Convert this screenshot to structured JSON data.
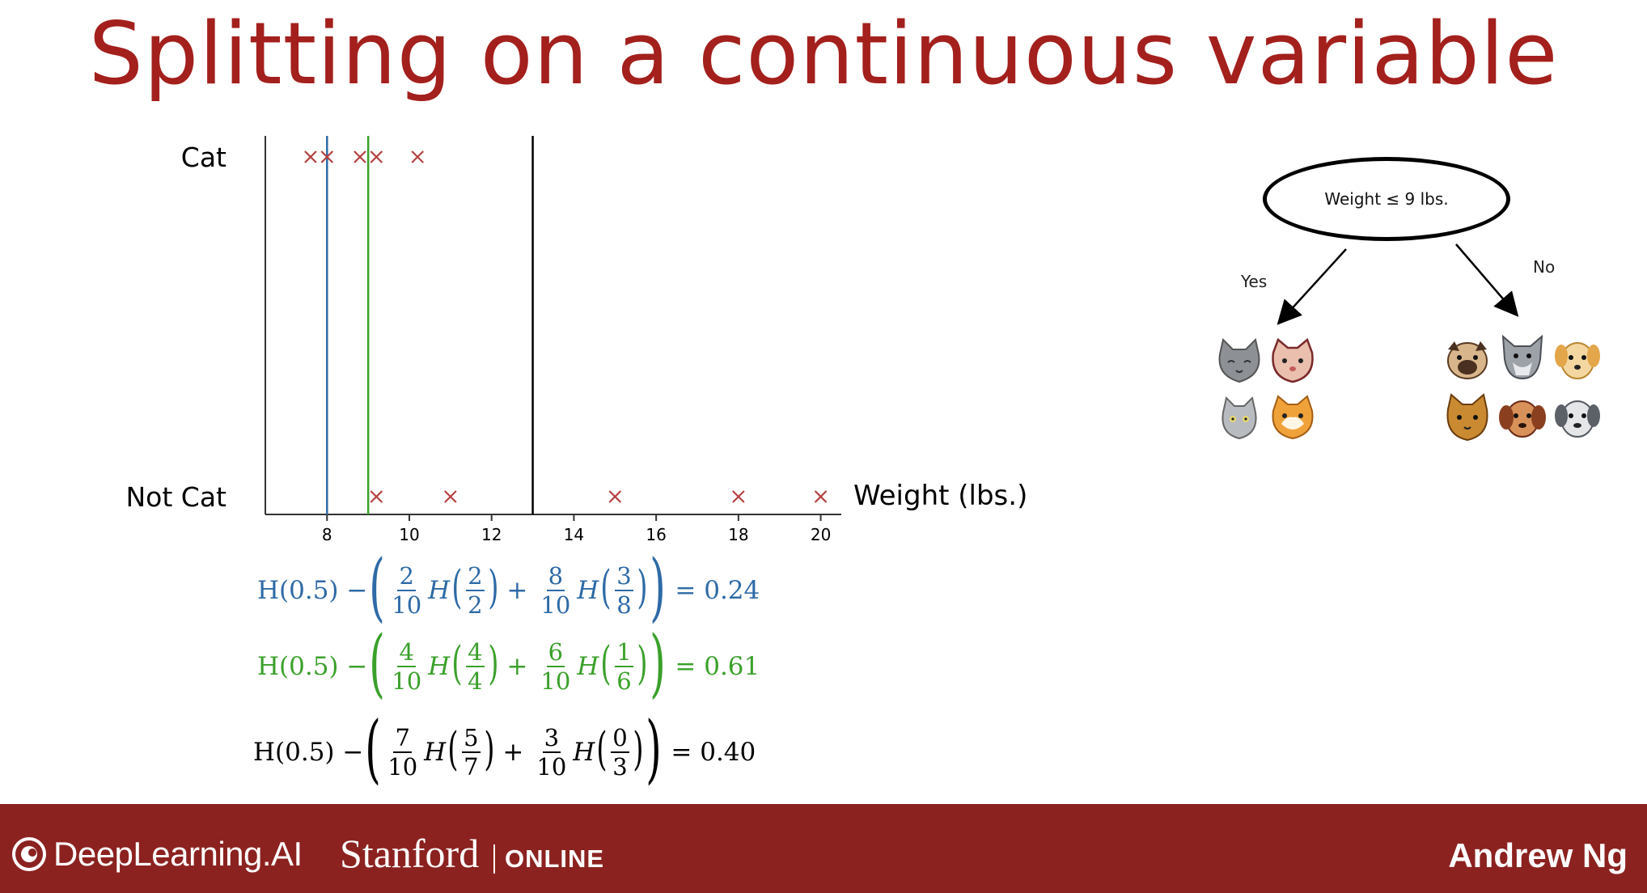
{
  "slide": {
    "title": "Splitting on a continuous variable",
    "title_color": "#a3201d"
  },
  "chart_data": {
    "type": "scatter",
    "xlabel": "Weight (lbs.)",
    "ylabel": "",
    "xlim": [
      6.5,
      20.5
    ],
    "xticks": [
      8,
      10,
      12,
      14,
      16,
      18,
      20
    ],
    "y_categories": [
      "Not Cat",
      "Cat"
    ],
    "marker": "x",
    "marker_color": "#b5403f",
    "series": [
      {
        "name": "Cat",
        "x": [
          7.6,
          8.0,
          8.8,
          9.2,
          10.2
        ],
        "y": "Cat"
      },
      {
        "name": "Not Cat",
        "x": [
          9.2,
          11.0,
          15.0,
          18.0,
          20.0
        ],
        "y": "Not Cat"
      }
    ],
    "thresholds": [
      {
        "x": 8,
        "color": "#2e6aa6"
      },
      {
        "x": 9,
        "color": "#3aa02a"
      },
      {
        "x": 13,
        "color": "#000000"
      }
    ]
  },
  "equations": [
    {
      "color": "#2e6aa6",
      "prefix": "H(0.5) −",
      "a_num": "2",
      "a_den": "10",
      "a_hnum": "2",
      "a_hden": "2",
      "b_num": "8",
      "b_den": "10",
      "b_hnum": "3",
      "b_hden": "8",
      "result": "= 0.24"
    },
    {
      "color": "#3aa02a",
      "prefix": "H(0.5) −",
      "a_num": "4",
      "a_den": "10",
      "a_hnum": "4",
      "a_hden": "4",
      "b_num": "6",
      "b_den": "10",
      "b_hnum": "1",
      "b_hden": "6",
      "result": "= 0.61"
    },
    {
      "color": "#000000",
      "prefix": "H(0.5) −",
      "a_num": "7",
      "a_den": "10",
      "a_hnum": "5",
      "a_hden": "7",
      "b_num": "3",
      "b_den": "10",
      "b_hnum": "0",
      "b_hden": "3",
      "result": "= 0.40"
    }
  ],
  "tree": {
    "node_label": "Weight ≤ 9 lbs.",
    "yes_label": "Yes",
    "no_label": "No",
    "left_animals": [
      "gray-cat-icon",
      "pink-cat-icon",
      "small-gray-cat-icon",
      "orange-cat-icon"
    ],
    "right_animals": [
      "pug-dog-icon",
      "gray-dog-icon",
      "golden-dog-icon",
      "orange-cat-icon",
      "brown-dog-icon",
      "gray-spotted-dog-icon"
    ]
  },
  "footer": {
    "brand": "DeepLearning.AI",
    "partner": "Stanford",
    "partner_suffix": "ONLINE",
    "author": "Andrew Ng",
    "background": "#8b2220"
  }
}
